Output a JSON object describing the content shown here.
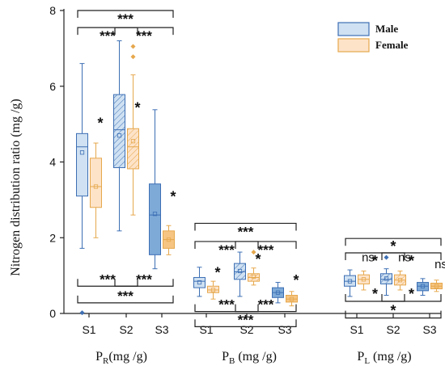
{
  "chart_data": {
    "type": "box",
    "ylabel": "Nitrogen distribution ratio (mg /g)",
    "ylim": [
      0,
      8
    ],
    "yticks": [
      "0",
      "2",
      "4",
      "6",
      "8"
    ],
    "groups": [
      {
        "title_main": "P",
        "title_sub": "R",
        "title_unit": "(mg /g)",
        "categories": [
          "S1",
          "S2",
          "S3"
        ]
      },
      {
        "title_main": "P",
        "title_sub": "B",
        "title_unit": " (mg /g)",
        "categories": [
          "S1",
          "S2",
          "S3"
        ]
      },
      {
        "title_main": "P",
        "title_sub": "L",
        "title_unit": " (mg /g)",
        "categories": [
          "S1",
          "S2",
          "S3"
        ]
      }
    ],
    "series": [
      {
        "name": "Male",
        "color": "#3d6fb4",
        "fill": "#cfe1f2"
      },
      {
        "name": "Female",
        "color": "#e6a84d",
        "fill": "#fde3c8"
      }
    ],
    "boxes": [
      {
        "group": 0,
        "stage": "S1",
        "series": "Male",
        "min": 1.72,
        "q1": 3.1,
        "median": 4.4,
        "q3": 4.75,
        "max": 6.6,
        "mean": 4.25,
        "outliers": [
          0.02
        ],
        "hatched": false,
        "dark": false
      },
      {
        "group": 0,
        "stage": "S1",
        "series": "Female",
        "min": 2.0,
        "q1": 2.8,
        "median": 3.35,
        "q3": 4.1,
        "max": 4.5,
        "mean": 3.35,
        "outliers": [],
        "hatched": false,
        "dark": false
      },
      {
        "group": 0,
        "stage": "S2",
        "series": "Male",
        "min": 2.18,
        "q1": 3.85,
        "median": 4.85,
        "q3": 5.78,
        "max": 7.2,
        "mean": 4.7,
        "outliers": [],
        "hatched": true,
        "dark": false
      },
      {
        "group": 0,
        "stage": "S2",
        "series": "Female",
        "min": 2.6,
        "q1": 3.82,
        "median": 4.4,
        "q3": 4.88,
        "max": 6.3,
        "mean": 4.55,
        "outliers": [
          7.05,
          6.78
        ],
        "hatched": true,
        "dark": false
      },
      {
        "group": 0,
        "stage": "S3",
        "series": "Male",
        "min": 1.18,
        "q1": 1.55,
        "median": 2.6,
        "q3": 3.42,
        "max": 5.38,
        "mean": 2.63,
        "outliers": [],
        "hatched": false,
        "dark": true
      },
      {
        "group": 0,
        "stage": "S3",
        "series": "Female",
        "min": 1.55,
        "q1": 1.72,
        "median": 1.95,
        "q3": 2.18,
        "max": 2.32,
        "mean": 1.95,
        "outliers": [],
        "hatched": false,
        "dark": true
      },
      {
        "group": 1,
        "stage": "S1",
        "series": "Male",
        "min": 0.45,
        "q1": 0.68,
        "median": 0.85,
        "q3": 0.95,
        "max": 1.22,
        "mean": 0.82,
        "outliers": [],
        "hatched": false,
        "dark": false
      },
      {
        "group": 1,
        "stage": "S1",
        "series": "Female",
        "min": 0.38,
        "q1": 0.55,
        "median": 0.62,
        "q3": 0.72,
        "max": 0.85,
        "mean": 0.62,
        "outliers": [],
        "hatched": false,
        "dark": false
      },
      {
        "group": 1,
        "stage": "S2",
        "series": "Male",
        "min": 0.45,
        "q1": 0.9,
        "median": 1.1,
        "q3": 1.32,
        "max": 1.62,
        "mean": 1.12,
        "outliers": [],
        "hatched": true,
        "dark": false
      },
      {
        "group": 1,
        "stage": "S2",
        "series": "Female",
        "min": 0.75,
        "q1": 0.85,
        "median": 0.95,
        "q3": 1.05,
        "max": 1.2,
        "mean": 0.97,
        "outliers": [
          1.62
        ],
        "hatched": true,
        "dark": false
      },
      {
        "group": 1,
        "stage": "S3",
        "series": "Male",
        "min": 0.28,
        "q1": 0.42,
        "median": 0.55,
        "q3": 0.68,
        "max": 0.82,
        "mean": 0.55,
        "outliers": [],
        "hatched": false,
        "dark": true
      },
      {
        "group": 1,
        "stage": "S3",
        "series": "Female",
        "min": 0.2,
        "q1": 0.3,
        "median": 0.38,
        "q3": 0.48,
        "max": 0.58,
        "mean": 0.38,
        "outliers": [],
        "hatched": false,
        "dark": true
      },
      {
        "group": 2,
        "stage": "S1",
        "series": "Male",
        "min": 0.45,
        "q1": 0.72,
        "median": 0.85,
        "q3": 1.0,
        "max": 1.15,
        "mean": 0.85,
        "outliers": [],
        "hatched": false,
        "dark": false
      },
      {
        "group": 2,
        "stage": "S1",
        "series": "Female",
        "min": 0.62,
        "q1": 0.78,
        "median": 0.9,
        "q3": 1.02,
        "max": 1.12,
        "mean": 0.9,
        "outliers": [],
        "hatched": false,
        "dark": false
      },
      {
        "group": 2,
        "stage": "S2",
        "series": "Male",
        "min": 0.48,
        "q1": 0.78,
        "median": 0.9,
        "q3": 1.05,
        "max": 1.18,
        "mean": 0.92,
        "outliers": [
          1.48
        ],
        "hatched": true,
        "dark": false
      },
      {
        "group": 2,
        "stage": "S2",
        "series": "Female",
        "min": 0.62,
        "q1": 0.75,
        "median": 0.88,
        "q3": 1.02,
        "max": 1.12,
        "mean": 0.88,
        "outliers": [],
        "hatched": true,
        "dark": false
      },
      {
        "group": 2,
        "stage": "S3",
        "series": "Male",
        "min": 0.48,
        "q1": 0.6,
        "median": 0.72,
        "q3": 0.82,
        "max": 0.92,
        "mean": 0.72,
        "outliers": [],
        "hatched": false,
        "dark": true
      },
      {
        "group": 2,
        "stage": "S3",
        "series": "Female",
        "min": 0.58,
        "q1": 0.65,
        "median": 0.72,
        "q3": 0.8,
        "max": 0.88,
        "mean": 0.72,
        "outliers": [],
        "hatched": false,
        "dark": true
      }
    ],
    "annotations": {
      "brackets": [
        {
          "group": 0,
          "side": "above",
          "from": "S1",
          "to": "S3",
          "level": 8.0,
          "label": "***"
        },
        {
          "group": 0,
          "side": "above",
          "from": "S1",
          "to": "S2",
          "level": 7.55,
          "label": "***"
        },
        {
          "group": 0,
          "side": "above",
          "from": "S2",
          "to": "S3",
          "level": 7.55,
          "label": "***"
        },
        {
          "group": 0,
          "side": "below",
          "from": "S1",
          "to": "S2",
          "level": 0.72,
          "label": "***"
        },
        {
          "group": 0,
          "side": "below",
          "from": "S2",
          "to": "S3",
          "level": 0.72,
          "label": "***"
        },
        {
          "group": 0,
          "side": "below",
          "from": "S1",
          "to": "S3",
          "level": 0.28,
          "label": "***"
        },
        {
          "group": 1,
          "side": "above",
          "from": "S1",
          "to": "S3",
          "level": 2.38,
          "label": "***"
        },
        {
          "group": 1,
          "side": "above",
          "from": "S1",
          "to": "S2",
          "level": 1.9,
          "label": "***"
        },
        {
          "group": 1,
          "side": "above",
          "from": "S2",
          "to": "S3",
          "level": 1.9,
          "label": "***"
        },
        {
          "group": 1,
          "side": "below",
          "from": "S1",
          "to": "S2",
          "level": 0.05,
          "label": "***"
        },
        {
          "group": 1,
          "side": "below",
          "from": "S2",
          "to": "S3",
          "level": 0.05,
          "label": "***"
        },
        {
          "group": 1,
          "side": "below",
          "from": "S1",
          "to": "S3",
          "level": -0.35,
          "label": "***"
        },
        {
          "group": 2,
          "side": "above",
          "from": "S1",
          "to": "S3",
          "level": 1.98,
          "label": "*"
        },
        {
          "group": 2,
          "side": "above",
          "from": "S1",
          "to": "S2",
          "level": 1.6,
          "label": "*"
        },
        {
          "group": 2,
          "side": "above",
          "from": "S2",
          "to": "S3",
          "level": 1.6,
          "label": "*"
        },
        {
          "group": 2,
          "side": "below",
          "from": "S1",
          "to": "S2",
          "level": 0.32,
          "label": "*"
        },
        {
          "group": 2,
          "side": "below",
          "from": "S2",
          "to": "S3",
          "level": 0.32,
          "label": "*"
        },
        {
          "group": 2,
          "side": "below",
          "from": "S1",
          "to": "S3",
          "level": -0.12,
          "label": "*"
        }
      ],
      "pair_labels": [
        {
          "group": 0,
          "stage": "S1",
          "label": "*",
          "y": 4.9
        },
        {
          "group": 0,
          "stage": "S2",
          "label": "*",
          "y": 5.3
        },
        {
          "group": 0,
          "stage": "S3",
          "label": "*",
          "y": 2.95
        },
        {
          "group": 1,
          "stage": "S1",
          "label": "*",
          "y": 0.95
        },
        {
          "group": 1,
          "stage": "S2",
          "label": "*",
          "y": 1.3
        },
        {
          "group": 1,
          "stage": "S3",
          "label": "*",
          "y": 0.75
        },
        {
          "group": 2,
          "stage": "S1",
          "label": "ns",
          "y": 1.38
        },
        {
          "group": 2,
          "stage": "S2",
          "label": "ns",
          "y": 1.38
        },
        {
          "group": 2,
          "stage": "S3",
          "label": "ns",
          "y": 1.2
        }
      ]
    },
    "legend": {
      "position": "top-right",
      "entries": [
        "Male",
        "Female"
      ]
    }
  }
}
